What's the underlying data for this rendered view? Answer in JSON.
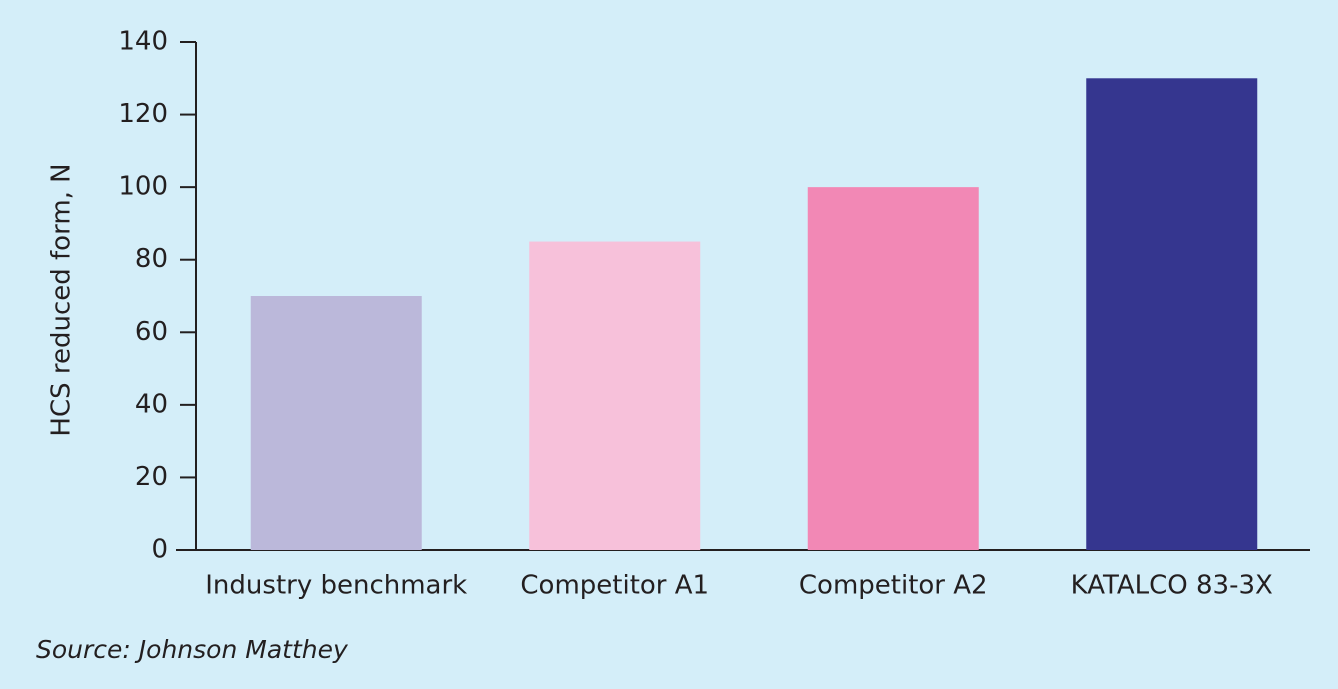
{
  "chart_data": {
    "type": "bar",
    "y_label": "HCS reduced form, N",
    "categories": [
      "Industry benchmark",
      "Competitor A1",
      "Competitor A2",
      "KATALCO 83-3X"
    ],
    "values": [
      70,
      85,
      100,
      130
    ],
    "colors": [
      "#bbb8da",
      "#f7c1da",
      "#f288b5",
      "#35368f"
    ],
    "ylim": [
      0,
      140
    ],
    "yticks": [
      0,
      20,
      40,
      60,
      80,
      100,
      120,
      140
    ],
    "source": "Source: Johnson Matthey"
  }
}
